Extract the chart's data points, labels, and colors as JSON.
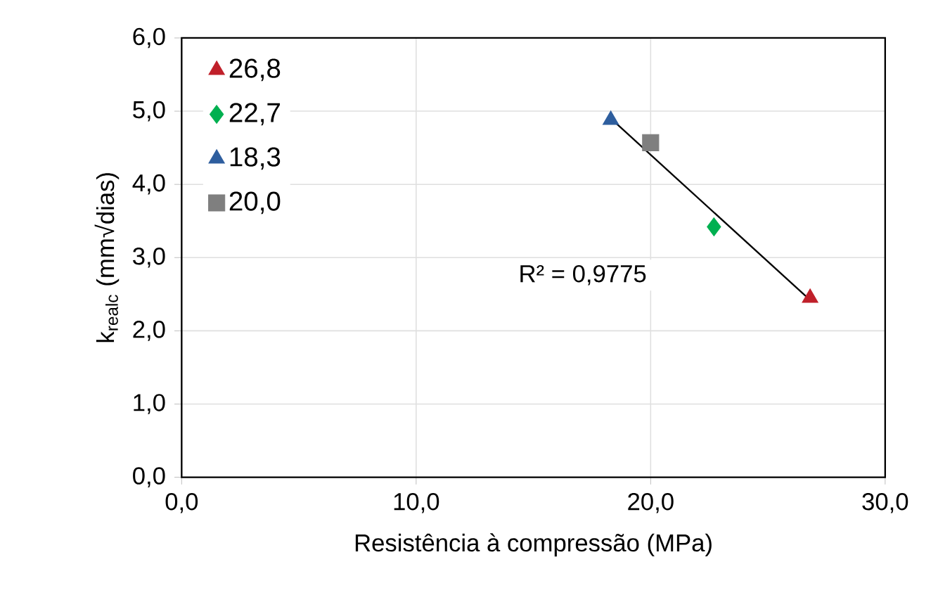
{
  "chart_data": {
    "type": "scatter",
    "xlabel": "Resistência à compressão (MPa)",
    "ylabel": "k$_{realc}$ (mm√dias)",
    "xlim": [
      0,
      30
    ],
    "ylim": [
      0,
      6
    ],
    "xticks": [
      {
        "value": 0,
        "label": "0,0"
      },
      {
        "value": 10,
        "label": "10,0"
      },
      {
        "value": 20,
        "label": "20,0"
      },
      {
        "value": 30,
        "label": "30,0"
      }
    ],
    "yticks": [
      {
        "value": 0,
        "label": "0,0"
      },
      {
        "value": 1,
        "label": "1,0"
      },
      {
        "value": 2,
        "label": "2,0"
      },
      {
        "value": 3,
        "label": "3,0"
      },
      {
        "value": 4,
        "label": "4,0"
      },
      {
        "value": 5,
        "label": "5,0"
      },
      {
        "value": 6,
        "label": "6,0"
      }
    ],
    "grid": true,
    "legend": "top left",
    "series": [
      {
        "name": "26,8",
        "color": "#c0202a",
        "marker": "triangle",
        "x": [
          26.8
        ],
        "values": [
          2.45
        ]
      },
      {
        "name": "22,7",
        "color": "#00b050",
        "marker": "diamond",
        "x": [
          22.7
        ],
        "values": [
          3.42
        ]
      },
      {
        "name": "18,3",
        "color": "#2e5e9e",
        "marker": "triangle",
        "x": [
          18.3
        ],
        "values": [
          4.88
        ]
      },
      {
        "name": "20,0",
        "color": "#7f7f7f",
        "marker": "square",
        "x": [
          20.0
        ],
        "values": [
          4.57
        ]
      },
      {
        "type": "line",
        "color": "#000000",
        "marker": "none",
        "x": [
          18.3,
          26.8
        ],
        "values": [
          4.9,
          2.42
        ]
      }
    ],
    "annotations": [
      "R² = 0,9775"
    ]
  }
}
